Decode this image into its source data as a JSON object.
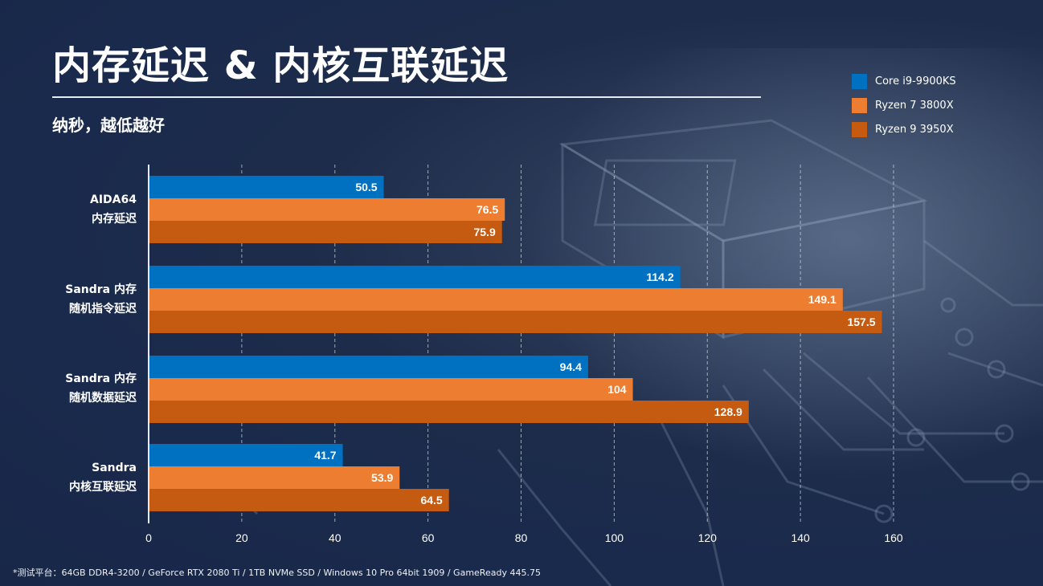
{
  "header": {
    "title": "内存延迟 & 内核互联延迟",
    "subtitle": "纳秒，越低越好"
  },
  "footnote": "*测试平台：64GB DDR4-3200 / GeForce RTX 2080 Ti / 1TB NVMe SSD / Windows 10 Pro 64bit 1909 / GameReady 445.75",
  "chart_data": {
    "type": "bar",
    "orientation": "horizontal",
    "title": "内存延迟 & 内核互联延迟",
    "subtitle": "纳秒，越低越好",
    "xlabel": "",
    "ylabel": "",
    "xlim": [
      0,
      160
    ],
    "xticks": [
      0,
      20,
      40,
      60,
      80,
      100,
      120,
      140,
      160
    ],
    "grid": "vertical-dashed",
    "legend_position": "top-right",
    "categories": [
      [
        "AIDA64",
        "内存延迟"
      ],
      [
        "Sandra 内存",
        "随机指令延迟"
      ],
      [
        "Sandra 内存",
        "随机数据延迟"
      ],
      [
        "Sandra",
        "内核互联延迟"
      ]
    ],
    "series": [
      {
        "name": "Core i9-9900KS",
        "color": "#0070c0",
        "values": [
          50.5,
          114.2,
          94.4,
          41.7
        ],
        "labels": [
          "50.5",
          "114.2",
          "94.4",
          "41.7"
        ]
      },
      {
        "name": "Ryzen 7 3800X",
        "color": "#ed7d31",
        "values": [
          76.5,
          149.1,
          104,
          53.9
        ],
        "labels": [
          "76.5",
          "149.1",
          "104",
          "53.9"
        ]
      },
      {
        "name": "Ryzen 9 3950X",
        "color": "#c55a11",
        "values": [
          75.9,
          157.5,
          128.9,
          64.5
        ],
        "labels": [
          "75.9",
          "157.5",
          "128.9",
          "64.5"
        ]
      }
    ]
  }
}
